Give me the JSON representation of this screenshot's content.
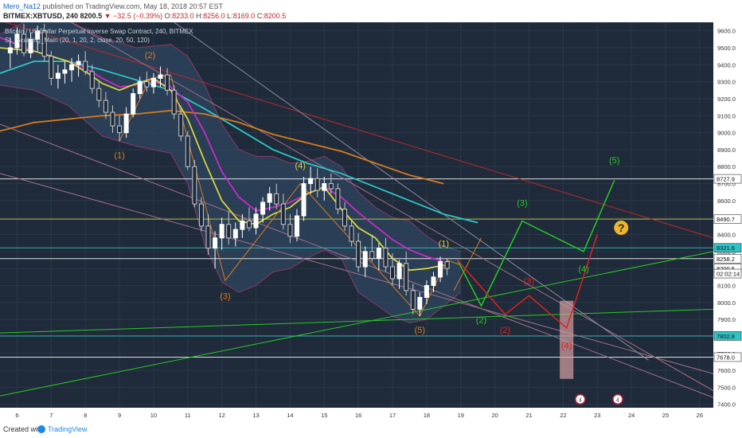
{
  "header": {
    "author": "Mero_Na12",
    "published_text": "published on TradingView.com, May 18, 2018 20:57 EST",
    "symbol": "BITMEX:XBTUSD, 240",
    "last": "8200.5",
    "change": "▼ −32.5 (−0.39%)",
    "open_label": "O:",
    "open": "8233.0",
    "high_label": "H:",
    "high": "8256.0",
    "low_label": "L:",
    "low": "8169.0",
    "close_label": "C:",
    "close": "8200.5"
  },
  "footer": {
    "created_with": "Created with",
    "brand": "TradingView"
  },
  "colors": {
    "background": "#1f2b3a",
    "grid": "#2a3848",
    "up_candle": "#ffffff",
    "down_candle": "#c8c8c8",
    "cyan": "#2ec4c7",
    "orange": "#d97b1e",
    "magenta": "#c92cc5",
    "yellow": "#d6d63b",
    "green": "#28c828",
    "red": "#e02020",
    "bb_fill": "#2f4660"
  },
  "chart_data": {
    "type": "candlestick",
    "title": "Bitcoin / US Dollar Perpetual Inverse Swap Contract, 240, BITMEX",
    "subtitle": "SL_Scalping_Main (20, 1, 20, 2, close, 20, 50, 120)",
    "x_ticks": [
      "6",
      "7",
      "8",
      "9",
      "10",
      "11",
      "12",
      "13",
      "14",
      "15",
      "16",
      "17",
      "18",
      "19",
      "20",
      "21",
      "22",
      "23",
      "24",
      "25",
      "26"
    ],
    "y_ticks": [
      "9600.0",
      "9500.0",
      "9400.0",
      "9300.0",
      "9200.0",
      "9100.0",
      "9000.0",
      "8900.0",
      "8800.0",
      "8700.0",
      "8600.0",
      "8500.0",
      "8400.0",
      "8300.0",
      "8200.0",
      "8100.0",
      "8000.0",
      "7900.0",
      "7800.0",
      "7700.0",
      "7600.0",
      "7500.0",
      "7400.0"
    ],
    "y_range": [
      7380,
      9650
    ],
    "x_range": [
      5.5,
      26.4
    ],
    "price_badges": [
      {
        "label": "8727.9",
        "price": 8727.9,
        "color": "#ffffff"
      },
      {
        "label": "8490.7",
        "price": 8490.7,
        "color": "#ffffff"
      },
      {
        "label": "8321.6",
        "price": 8321.6,
        "color": "#2ec4c7"
      },
      {
        "label": "8258.2",
        "price": 8258.2,
        "color": "#ffffff"
      },
      {
        "label": "8200.5",
        "price": 8200.5,
        "color": "#ffffff"
      },
      {
        "label": "02:02:14",
        "price": 8170,
        "color": "#ffffff"
      },
      {
        "label": "7802.8",
        "price": 7802.8,
        "color": "#2ec4c7"
      },
      {
        "label": "7678.0",
        "price": 7678.0,
        "color": "#ffffff"
      }
    ],
    "horizontal_lines": [
      {
        "price": 8727.9,
        "color": "#ffffff"
      },
      {
        "price": 8490.7,
        "color": "#d6d63b"
      },
      {
        "price": 8321.6,
        "color": "#2ec4c7"
      },
      {
        "price": 8258.2,
        "color": "#ffffff"
      },
      {
        "price": 7802.8,
        "color": "#2ec4c7"
      },
      {
        "price": 7678.0,
        "color": "#ffffff"
      }
    ],
    "trend_lines": [
      {
        "from": [
          5.5,
          9660
        ],
        "to": [
          26.4,
          8380
        ],
        "color": "#c0272d"
      },
      {
        "from": [
          7.5,
          9660
        ],
        "to": [
          26.4,
          7480
        ],
        "color": "#a0708a"
      },
      {
        "from": [
          5.5,
          9050
        ],
        "to": [
          26.4,
          7440
        ],
        "color": "#a0708a"
      },
      {
        "from": [
          5.5,
          8760
        ],
        "to": [
          26.4,
          7580
        ],
        "color": "#a0708a"
      },
      {
        "from": [
          5.5,
          7450
        ],
        "to": [
          26.4,
          8300
        ],
        "color": "#28c828"
      },
      {
        "from": [
          5.5,
          7820
        ],
        "to": [
          26.4,
          7960
        ],
        "color": "#28c828"
      },
      {
        "from": [
          10.6,
          9650
        ],
        "to": [
          24.5,
          7660
        ],
        "color": "#8a8aa0"
      },
      {
        "from": [
          18.8,
          8070
        ],
        "to": [
          19.6,
          8380
        ],
        "color": "#d97b1e"
      }
    ],
    "candles": [
      {
        "x": 5.8,
        "o": 9470,
        "h": 9560,
        "l": 9380,
        "c": 9500
      },
      {
        "x": 6.0,
        "o": 9500,
        "h": 9620,
        "l": 9460,
        "c": 9580
      },
      {
        "x": 6.2,
        "o": 9580,
        "h": 9640,
        "l": 9450,
        "c": 9470
      },
      {
        "x": 6.4,
        "o": 9470,
        "h": 9590,
        "l": 9440,
        "c": 9550
      },
      {
        "x": 6.6,
        "o": 9550,
        "h": 9630,
        "l": 9480,
        "c": 9600
      },
      {
        "x": 6.8,
        "o": 9600,
        "h": 9640,
        "l": 9420,
        "c": 9450
      },
      {
        "x": 7.0,
        "o": 9450,
        "h": 9480,
        "l": 9280,
        "c": 9320
      },
      {
        "x": 7.2,
        "o": 9320,
        "h": 9400,
        "l": 9260,
        "c": 9350
      },
      {
        "x": 7.4,
        "o": 9350,
        "h": 9420,
        "l": 9290,
        "c": 9370
      },
      {
        "x": 7.6,
        "o": 9370,
        "h": 9440,
        "l": 9300,
        "c": 9400
      },
      {
        "x": 7.8,
        "o": 9400,
        "h": 9460,
        "l": 9330,
        "c": 9420
      },
      {
        "x": 8.0,
        "o": 9420,
        "h": 9480,
        "l": 9340,
        "c": 9360
      },
      {
        "x": 8.2,
        "o": 9360,
        "h": 9400,
        "l": 9230,
        "c": 9260
      },
      {
        "x": 8.4,
        "o": 9260,
        "h": 9300,
        "l": 9150,
        "c": 9190
      },
      {
        "x": 8.6,
        "o": 9190,
        "h": 9240,
        "l": 9080,
        "c": 9120
      },
      {
        "x": 8.8,
        "o": 9120,
        "h": 9160,
        "l": 9000,
        "c": 9040
      },
      {
        "x": 9.0,
        "o": 9040,
        "h": 9100,
        "l": 8950,
        "c": 9000
      },
      {
        "x": 9.2,
        "o": 9000,
        "h": 9150,
        "l": 8970,
        "c": 9110
      },
      {
        "x": 9.4,
        "o": 9110,
        "h": 9260,
        "l": 9090,
        "c": 9230
      },
      {
        "x": 9.6,
        "o": 9230,
        "h": 9330,
        "l": 9200,
        "c": 9300
      },
      {
        "x": 9.8,
        "o": 9300,
        "h": 9360,
        "l": 9240,
        "c": 9270
      },
      {
        "x": 10.0,
        "o": 9270,
        "h": 9350,
        "l": 9230,
        "c": 9320
      },
      {
        "x": 10.2,
        "o": 9320,
        "h": 9390,
        "l": 9270,
        "c": 9340
      },
      {
        "x": 10.4,
        "o": 9340,
        "h": 9380,
        "l": 9220,
        "c": 9250
      },
      {
        "x": 10.6,
        "o": 9250,
        "h": 9280,
        "l": 9080,
        "c": 9110
      },
      {
        "x": 10.8,
        "o": 9110,
        "h": 9150,
        "l": 8950,
        "c": 8980
      },
      {
        "x": 11.0,
        "o": 8980,
        "h": 9010,
        "l": 8780,
        "c": 8800
      },
      {
        "x": 11.2,
        "o": 8800,
        "h": 8840,
        "l": 8560,
        "c": 8580
      },
      {
        "x": 11.4,
        "o": 8580,
        "h": 8620,
        "l": 8420,
        "c": 8450
      },
      {
        "x": 11.6,
        "o": 8450,
        "h": 8520,
        "l": 8280,
        "c": 8320
      },
      {
        "x": 11.8,
        "o": 8320,
        "h": 8420,
        "l": 8200,
        "c": 8380
      },
      {
        "x": 12.0,
        "o": 8380,
        "h": 8500,
        "l": 8310,
        "c": 8460
      },
      {
        "x": 12.2,
        "o": 8460,
        "h": 8540,
        "l": 8340,
        "c": 8380
      },
      {
        "x": 12.4,
        "o": 8380,
        "h": 8470,
        "l": 8330,
        "c": 8430
      },
      {
        "x": 12.6,
        "o": 8430,
        "h": 8520,
        "l": 8380,
        "c": 8480
      },
      {
        "x": 12.8,
        "o": 8480,
        "h": 8560,
        "l": 8420,
        "c": 8440
      },
      {
        "x": 13.0,
        "o": 8440,
        "h": 8560,
        "l": 8400,
        "c": 8520
      },
      {
        "x": 13.2,
        "o": 8520,
        "h": 8620,
        "l": 8470,
        "c": 8590
      },
      {
        "x": 13.4,
        "o": 8590,
        "h": 8680,
        "l": 8540,
        "c": 8640
      },
      {
        "x": 13.6,
        "o": 8640,
        "h": 8700,
        "l": 8550,
        "c": 8580
      },
      {
        "x": 13.8,
        "o": 8580,
        "h": 8640,
        "l": 8430,
        "c": 8460
      },
      {
        "x": 14.0,
        "o": 8460,
        "h": 8520,
        "l": 8350,
        "c": 8390
      },
      {
        "x": 14.2,
        "o": 8390,
        "h": 8550,
        "l": 8360,
        "c": 8510
      },
      {
        "x": 14.4,
        "o": 8510,
        "h": 8740,
        "l": 8480,
        "c": 8700
      },
      {
        "x": 14.6,
        "o": 8700,
        "h": 8800,
        "l": 8640,
        "c": 8730
      },
      {
        "x": 14.8,
        "o": 8730,
        "h": 8790,
        "l": 8620,
        "c": 8660
      },
      {
        "x": 15.0,
        "o": 8660,
        "h": 8740,
        "l": 8600,
        "c": 8700
      },
      {
        "x": 15.2,
        "o": 8700,
        "h": 8760,
        "l": 8640,
        "c": 8670
      },
      {
        "x": 15.4,
        "o": 8670,
        "h": 8700,
        "l": 8520,
        "c": 8550
      },
      {
        "x": 15.6,
        "o": 8550,
        "h": 8590,
        "l": 8420,
        "c": 8450
      },
      {
        "x": 15.8,
        "o": 8450,
        "h": 8490,
        "l": 8330,
        "c": 8360
      },
      {
        "x": 16.0,
        "o": 8360,
        "h": 8410,
        "l": 8180,
        "c": 8210
      },
      {
        "x": 16.2,
        "o": 8210,
        "h": 8330,
        "l": 8150,
        "c": 8300
      },
      {
        "x": 16.4,
        "o": 8300,
        "h": 8400,
        "l": 8240,
        "c": 8260
      },
      {
        "x": 16.6,
        "o": 8260,
        "h": 8350,
        "l": 8190,
        "c": 8320
      },
      {
        "x": 16.8,
        "o": 8320,
        "h": 8380,
        "l": 8180,
        "c": 8210
      },
      {
        "x": 17.0,
        "o": 8210,
        "h": 8290,
        "l": 8100,
        "c": 8140
      },
      {
        "x": 17.2,
        "o": 8140,
        "h": 8250,
        "l": 8080,
        "c": 8230
      },
      {
        "x": 17.4,
        "o": 8230,
        "h": 8300,
        "l": 8040,
        "c": 8070
      },
      {
        "x": 17.6,
        "o": 8070,
        "h": 8110,
        "l": 7930,
        "c": 7960
      },
      {
        "x": 17.8,
        "o": 7960,
        "h": 8060,
        "l": 7920,
        "c": 8030
      },
      {
        "x": 18.0,
        "o": 8030,
        "h": 8130,
        "l": 7990,
        "c": 8100
      },
      {
        "x": 18.2,
        "o": 8100,
        "h": 8180,
        "l": 8060,
        "c": 8150
      },
      {
        "x": 18.4,
        "o": 8150,
        "h": 8270,
        "l": 8120,
        "c": 8240
      },
      {
        "x": 18.6,
        "o": 8240,
        "h": 8260,
        "l": 8160,
        "c": 8200
      }
    ],
    "bollinger": {
      "x": [
        5.5,
        6.5,
        7.5,
        8.5,
        9.5,
        10.5,
        11.0,
        11.5,
        12.0,
        12.5,
        13.0,
        13.5,
        14.0,
        14.5,
        15.0,
        15.5,
        16.0,
        16.5,
        17.0,
        17.5,
        18.0,
        18.5,
        19.0
      ],
      "upper": [
        9580,
        9680,
        9660,
        9560,
        9500,
        9520,
        9450,
        9280,
        9050,
        8900,
        8860,
        8860,
        8820,
        8830,
        8860,
        8800,
        8650,
        8560,
        8500,
        8480,
        8390,
        8330,
        8300
      ],
      "lower": [
        9280,
        9250,
        9160,
        8980,
        8920,
        8880,
        8700,
        8340,
        8120,
        8060,
        8100,
        8180,
        8200,
        8260,
        8310,
        8260,
        8060,
        7990,
        7920,
        7880,
        7900,
        7980,
        8060
      ]
    },
    "series": [
      {
        "name": "",
        "color": "#2ec4c7",
        "x": [
          5.5,
          6.5,
          7.5,
          8.5,
          9.5,
          10.5,
          11.5,
          12.5,
          13.5,
          14.5,
          15.5,
          16.5,
          17.5,
          18.5,
          19.5
        ],
        "y": [
          9350,
          9420,
          9420,
          9370,
          9310,
          9250,
          9140,
          9020,
          8900,
          8820,
          8760,
          8680,
          8600,
          8520,
          8470
        ]
      },
      {
        "name": "",
        "color": "#d97b1e",
        "x": [
          5.5,
          6.5,
          7.5,
          8.5,
          9.5,
          10.5,
          11.5,
          12.5,
          13.5,
          14.5,
          15.5,
          16.5,
          17.5,
          18.5
        ],
        "y": [
          9010,
          9060,
          9080,
          9100,
          9110,
          9130,
          9110,
          9060,
          8990,
          8940,
          8890,
          8820,
          8750,
          8700
        ]
      },
      {
        "name": "",
        "color": "#c92cc5",
        "x": [
          5.5,
          6.5,
          7.5,
          8.0,
          8.5,
          9.0,
          9.5,
          10.0,
          10.5,
          11.0,
          11.5,
          12.0,
          12.5,
          13.0,
          13.5,
          14.0,
          14.5,
          15.0,
          15.5,
          16.0,
          16.5,
          17.0,
          17.5,
          18.0,
          18.5
        ],
        "y": [
          9560,
          9480,
          9420,
          9380,
          9320,
          9270,
          9280,
          9300,
          9270,
          9180,
          9000,
          8770,
          8620,
          8540,
          8560,
          8590,
          8640,
          8680,
          8620,
          8530,
          8450,
          8370,
          8310,
          8270,
          8240
        ]
      },
      {
        "name": "",
        "color": "#d6d63b",
        "x": [
          5.5,
          6.5,
          7.5,
          8.0,
          8.5,
          9.0,
          9.5,
          10.0,
          10.5,
          11.0,
          11.5,
          12.0,
          12.5,
          13.0,
          13.5,
          14.0,
          14.5,
          15.0,
          15.5,
          16.0,
          16.5,
          17.0,
          17.5,
          18.0,
          18.5
        ],
        "y": [
          9500,
          9480,
          9420,
          9360,
          9290,
          9250,
          9290,
          9320,
          9250,
          9080,
          8830,
          8600,
          8480,
          8460,
          8520,
          8560,
          8640,
          8680,
          8550,
          8440,
          8380,
          8260,
          8190,
          8200,
          8220
        ]
      },
      {
        "name": "",
        "color": "#d97b1e",
        "x": [
          9.0,
          9.9,
          10.5,
          12.1,
          14.3,
          17.8,
          18.6,
          19.0
        ],
        "y": [
          8950,
          9320,
          9340,
          8130,
          8700,
          7920,
          8250,
          8220
        ]
      }
    ],
    "scenario_up": {
      "color": "#28c828",
      "x": [
        18.9,
        19.6,
        20.8,
        22.6,
        23.5
      ],
      "y": [
        8250,
        7980,
        8480,
        8300,
        8720
      ]
    },
    "scenario_down": {
      "color": "#e02020",
      "x": [
        18.9,
        20.3,
        21.0,
        22.1,
        23.0
      ],
      "y": [
        8250,
        7930,
        8040,
        7850,
        8400
      ]
    },
    "box": {
      "x0": 21.9,
      "x1": 22.3,
      "y0": 7550,
      "y1": 8010,
      "color": "#d6a0a0"
    },
    "labels": [
      {
        "text": "(1)",
        "x": 9.0,
        "y": 8850,
        "color": "#d97b1e"
      },
      {
        "text": "(2)",
        "x": 9.9,
        "y": 9440,
        "color": "#d97b1e"
      },
      {
        "text": "(3)",
        "x": 12.1,
        "y": 8020,
        "color": "#d97b1e"
      },
      {
        "text": "(4)",
        "x": 14.3,
        "y": 8790,
        "color": "#d6d63b"
      },
      {
        "text": "(5)",
        "x": 17.8,
        "y": 7820,
        "color": "#d97b1e"
      },
      {
        "text": "(1)",
        "x": 18.5,
        "y": 8330,
        "color": "#d6d63b"
      },
      {
        "text": "(2)",
        "x": 19.6,
        "y": 7880,
        "color": "#28c828"
      },
      {
        "text": "(3)",
        "x": 20.8,
        "y": 8570,
        "color": "#28c828"
      },
      {
        "text": "(4)",
        "x": 22.6,
        "y": 8180,
        "color": "#28c828"
      },
      {
        "text": "(5)",
        "x": 23.5,
        "y": 8820,
        "color": "#28c828"
      },
      {
        "text": "(2)",
        "x": 20.3,
        "y": 7820,
        "color": "#e02020"
      },
      {
        "text": "(3)",
        "x": 21.0,
        "y": 8110,
        "color": "#e02020"
      },
      {
        "text": "(4)",
        "x": 22.1,
        "y": 7730,
        "color": "#e02020"
      }
    ],
    "question_mark": {
      "text": "?",
      "x": 23.7,
      "y": 8440,
      "color": "#f0b429"
    },
    "event_badges": [
      {
        "x": 22.5,
        "y": 7430,
        "text": "4"
      },
      {
        "x": 23.6,
        "y": 7430,
        "text": "4"
      }
    ]
  }
}
